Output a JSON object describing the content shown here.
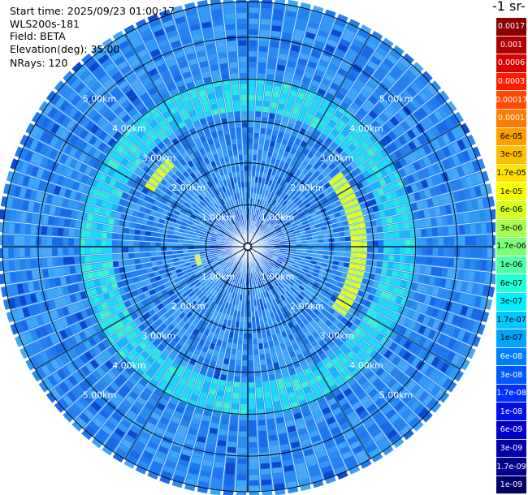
{
  "info": {
    "start_time": "Start time: 2025/09/23 01:00:17",
    "instrument": "WLS200s-181",
    "field": "Field: BETA",
    "elevation": "Elevation(deg): 35.00",
    "nrays": "NRays: 120"
  },
  "colorbar": {
    "title": "-1 sr-",
    "entries": [
      {
        "label": "0.0017",
        "color": "#8a0000",
        "text_color": "#ffffff"
      },
      {
        "label": "0.001",
        "color": "#b00000",
        "text_color": "#ffffff"
      },
      {
        "label": "0.0006",
        "color": "#d80000",
        "text_color": "#ffffff"
      },
      {
        "label": "0.0003",
        "color": "#ff1a00",
        "text_color": "#ffffff"
      },
      {
        "label": "0.00017",
        "color": "#ff4a00",
        "text_color": "#ffffff"
      },
      {
        "label": "0.0001",
        "color": "#ff7a00",
        "text_color": "#ffffff"
      },
      {
        "label": "6e-05",
        "color": "#ff9e00",
        "text_color": "#000000"
      },
      {
        "label": "3e-05",
        "color": "#ffbe00",
        "text_color": "#000000"
      },
      {
        "label": "1.7e-05",
        "color": "#ffe000",
        "text_color": "#000000"
      },
      {
        "label": "1e-05",
        "color": "#f4ff00",
        "text_color": "#000000"
      },
      {
        "label": "6e-06",
        "color": "#d4ff20",
        "text_color": "#000000"
      },
      {
        "label": "3e-06",
        "color": "#a6ff50",
        "text_color": "#000000"
      },
      {
        "label": "1.7e-06",
        "color": "#7cff7a",
        "text_color": "#000000"
      },
      {
        "label": "1e-06",
        "color": "#50ffa6",
        "text_color": "#000000"
      },
      {
        "label": "6e-07",
        "color": "#20ffd6",
        "text_color": "#000000"
      },
      {
        "label": "3e-07",
        "color": "#00f0ff",
        "text_color": "#000000"
      },
      {
        "label": "1.7e-07",
        "color": "#00c8ff",
        "text_color": "#000000"
      },
      {
        "label": "1e-07",
        "color": "#00a4ff",
        "text_color": "#000000"
      },
      {
        "label": "6e-08",
        "color": "#007eff",
        "text_color": "#ffffff"
      },
      {
        "label": "3e-08",
        "color": "#0058ff",
        "text_color": "#ffffff"
      },
      {
        "label": "1.7e-08",
        "color": "#0030ff",
        "text_color": "#ffffff"
      },
      {
        "label": "1e-08",
        "color": "#0010e8",
        "text_color": "#ffffff"
      },
      {
        "label": "6e-09",
        "color": "#0000c8",
        "text_color": "#ffffff"
      },
      {
        "label": "3e-09",
        "color": "#0000a8",
        "text_color": "#ffffff"
      },
      {
        "label": "1.7e-09",
        "color": "#000088",
        "text_color": "#ffffff"
      },
      {
        "label": "1e-09",
        "color": "#000068",
        "text_color": "#ffffff"
      }
    ]
  },
  "chart_data": {
    "type": "heatmap",
    "projection": "polar",
    "n_rays": 120,
    "max_range_km": 5.85,
    "range_rings_km": [
      1,
      2,
      3,
      4,
      5
    ],
    "ring_labels": [
      "1.00km",
      "2.00km",
      "3.00km",
      "4.00km",
      "5.00km"
    ],
    "ring_label_angles_deg": [
      45,
      135,
      225,
      315
    ],
    "spoke_angles_deg": [
      0,
      30,
      60,
      90,
      120,
      150,
      180,
      210,
      240,
      270,
      300,
      330
    ],
    "features": [
      {
        "name": "range-band",
        "r_min_km": 3.2,
        "r_max_km": 4.0,
        "level": "1.7e-07"
      },
      {
        "name": "aerosol-arc-east",
        "r_min_km": 2.45,
        "r_max_km": 2.85,
        "az_min_deg": 50,
        "az_max_deg": 125,
        "level": "1e-05"
      },
      {
        "name": "aerosol-arc-northwest",
        "r_min_km": 2.65,
        "r_max_km": 2.85,
        "az_min_deg": 300,
        "az_max_deg": 318,
        "level": "1e-05"
      },
      {
        "name": "aerosol-spot-west",
        "r_min_km": 1.1,
        "r_max_km": 1.25,
        "az_min_deg": 250,
        "az_max_deg": 262,
        "level": "1e-05"
      }
    ],
    "grid": true
  }
}
